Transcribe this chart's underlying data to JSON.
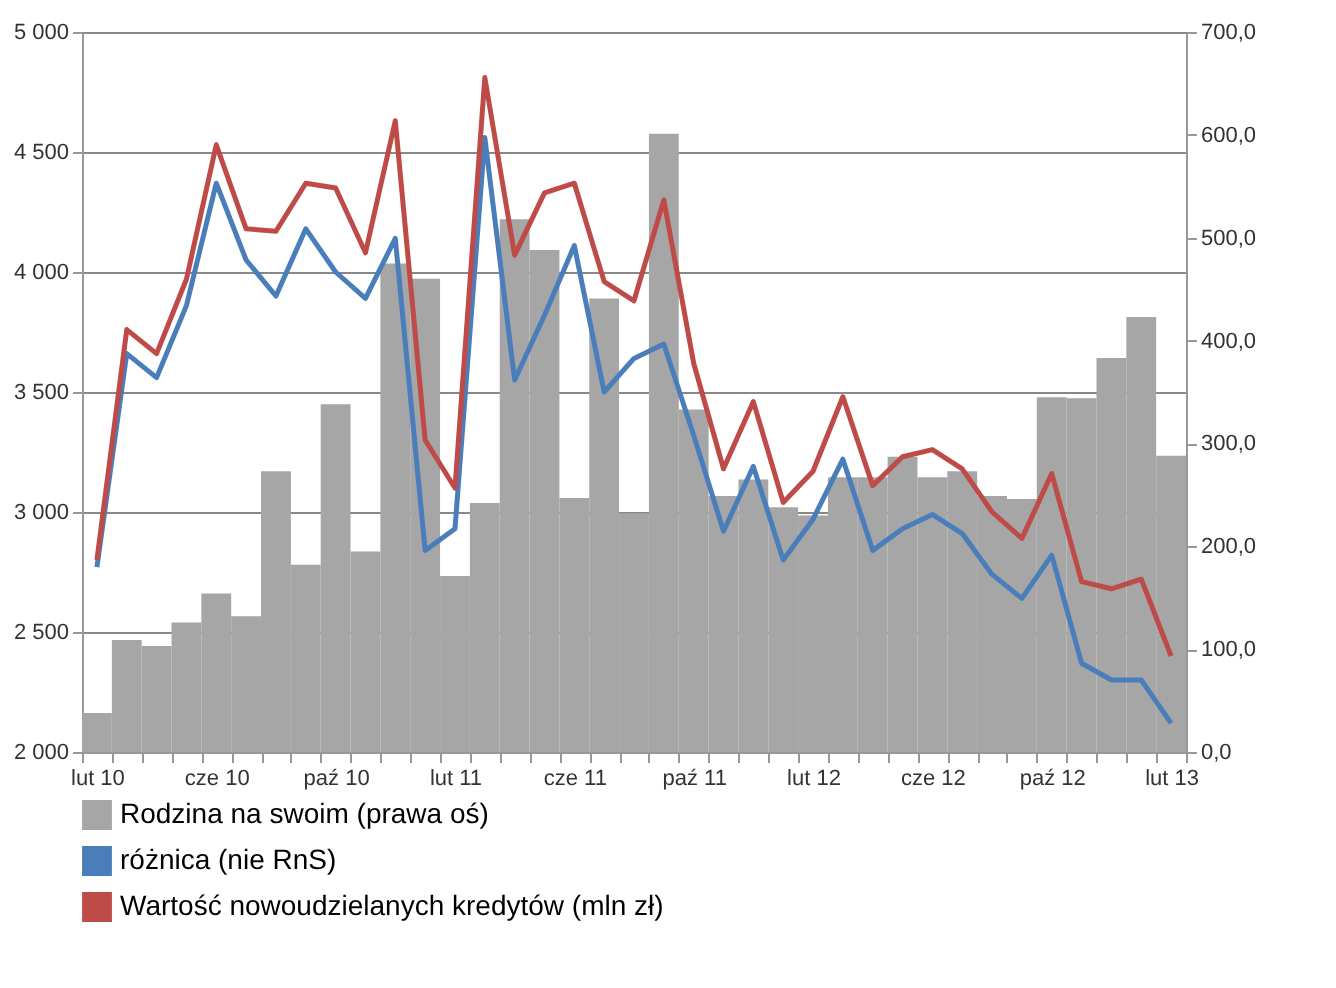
{
  "chart_data": {
    "type": "bar",
    "categories": [
      "lut 10",
      null,
      null,
      null,
      "cze 10",
      null,
      null,
      null,
      "paź 10",
      null,
      null,
      null,
      "lut 11",
      null,
      null,
      null,
      "cze 11",
      null,
      null,
      null,
      "paź 11",
      null,
      null,
      null,
      "lut 12",
      null,
      null,
      null,
      "cze 12",
      null,
      null,
      null,
      "paź 12",
      null,
      null,
      null,
      "lut 13"
    ],
    "series": [
      {
        "name": "Rodzina na swoim (prawa oś)",
        "axis": "y2",
        "color": "#a6a6a6",
        "values": [
          38,
          109,
          103,
          126,
          154,
          132,
          273,
          182,
          338,
          195,
          475,
          460,
          171,
          242,
          518,
          488,
          247,
          441,
          232,
          601,
          333,
          249,
          265,
          238,
          230,
          267,
          267,
          287,
          267,
          273,
          249,
          246,
          345,
          344,
          383,
          423,
          288
        ]
      },
      {
        "name": "różnica (nie RnS)",
        "type": "line",
        "color": "#4a7ebb",
        "values": [
          2770,
          3660,
          3560,
          3860,
          4370,
          4050,
          3900,
          4180,
          4000,
          3890,
          4140,
          2840,
          2930,
          4560,
          3550,
          3820,
          4110,
          3500,
          3640,
          3700,
          3320,
          2920,
          3190,
          2800,
          2970,
          3220,
          2840,
          2930,
          2990,
          2910,
          2740,
          2640,
          2820,
          2370,
          2300,
          2300,
          2120
        ]
      },
      {
        "name": "Wartość nowoudzielanych kredytów (mln zł)",
        "type": "line",
        "color": "#be4b48",
        "values": [
          2800,
          3760,
          3660,
          3970,
          4530,
          4180,
          4170,
          4370,
          4350,
          4080,
          4630,
          3300,
          3100,
          4810,
          4070,
          4330,
          4370,
          3960,
          3880,
          4300,
          3620,
          3180,
          3460,
          3040,
          3170,
          3480,
          3110,
          3230,
          3260,
          3180,
          3000,
          2890,
          3160,
          2710,
          2680,
          2720,
          2400
        ]
      }
    ],
    "ylim": [
      2000,
      5000
    ],
    "yticks": [
      {
        "value": 2000,
        "label": "2 000"
      },
      {
        "value": 2500,
        "label": "2 500"
      },
      {
        "value": 3000,
        "label": "3 000"
      },
      {
        "value": 3500,
        "label": "3 500"
      },
      {
        "value": 4000,
        "label": "4 000"
      },
      {
        "value": 4500,
        "label": "4 500"
      },
      {
        "value": 5000,
        "label": "5 000"
      }
    ],
    "y2lim": [
      0,
      700
    ],
    "y2ticks": [
      {
        "value": 0,
        "label": "0,0"
      },
      {
        "value": 100,
        "label": "100,0"
      },
      {
        "value": 200,
        "label": "200,0"
      },
      {
        "value": 300,
        "label": "300,0"
      },
      {
        "value": 400,
        "label": "400,0"
      },
      {
        "value": 500,
        "label": "500,0"
      },
      {
        "value": 600,
        "label": "600,0"
      },
      {
        "value": 700,
        "label": "700,0"
      }
    ],
    "grid": "y",
    "legend": "bottom",
    "line_style": "solid",
    "marker": "none"
  }
}
